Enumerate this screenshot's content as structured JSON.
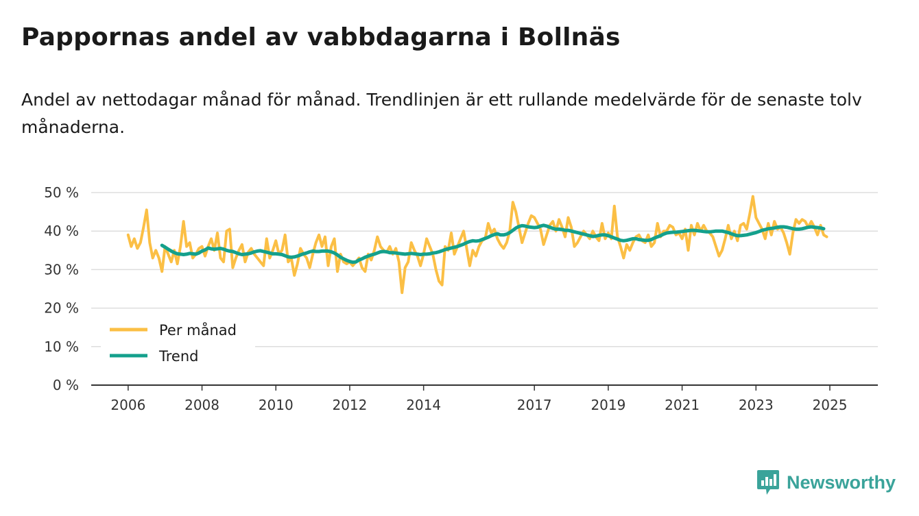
{
  "title": "Pappornas andel av vabbdagarna i Bollnäs",
  "subtitle": "Andel av nettodagar månad för månad. Trendlinjen är ett rullande medelvärde för de senaste tolv månaderna.",
  "brand": "Newsworthy",
  "colors": {
    "monthly": "#fbbf45",
    "trend": "#14a08c",
    "grid": "#dddddd",
    "axis": "#333333",
    "brand": "#3aa39a"
  },
  "chart_data": {
    "type": "line",
    "title": "Pappornas andel av vabbdagarna i Bollnäs",
    "xlabel": "",
    "ylabel": "",
    "ylim": [
      0,
      50
    ],
    "xlim": [
      2005.0,
      2026.3
    ],
    "yticks": [
      0,
      10,
      20,
      30,
      40,
      50
    ],
    "ytick_labels": [
      "0 %",
      "10 %",
      "20 %",
      "30 %",
      "40 %",
      "50 %"
    ],
    "xticks": [
      2006,
      2008,
      2010,
      2012,
      2014,
      2017,
      2019,
      2021,
      2023,
      2025
    ],
    "xtick_labels": [
      "2006",
      "2008",
      "2010",
      "2012",
      "2014",
      "2017",
      "2019",
      "2021",
      "2023",
      "2025"
    ],
    "legend_position": "bottom-left",
    "series": [
      {
        "name": "Per månad",
        "start": 2006.0,
        "step": 0.08333,
        "values": [
          39,
          36,
          38,
          35.5,
          37,
          41,
          45.5,
          37,
          33,
          35,
          33,
          29.5,
          36,
          34,
          32,
          35,
          31.5,
          36,
          42.5,
          36,
          37,
          33,
          34,
          35.5,
          36,
          33.5,
          36,
          38,
          35,
          39.5,
          33,
          32,
          40,
          40.5,
          30.5,
          33,
          35,
          36.5,
          32,
          34.5,
          35.5,
          34,
          33,
          32,
          31,
          38,
          33,
          35,
          37.5,
          34,
          35,
          39,
          32,
          33,
          28.5,
          31.5,
          35.5,
          34,
          33,
          30.5,
          34,
          37,
          39,
          36,
          38.5,
          31,
          36,
          38,
          29.5,
          34,
          32,
          31.5,
          32,
          31,
          32,
          33,
          30.5,
          29.5,
          34,
          32.5,
          35,
          38.5,
          36,
          35,
          34.5,
          36,
          34,
          35.5,
          32,
          24,
          30.5,
          32,
          37,
          35,
          33.5,
          31,
          34,
          38,
          36,
          34,
          30,
          27,
          26,
          36,
          35,
          39.5,
          34,
          36,
          38,
          40,
          35.5,
          31,
          35,
          33.5,
          36,
          37.5,
          38,
          42,
          39.5,
          40.5,
          38,
          36.5,
          35.5,
          37,
          40,
          47.5,
          45,
          41,
          37,
          39.5,
          42,
          44,
          43.5,
          42,
          40.5,
          36.5,
          39,
          41.5,
          42.5,
          40,
          43,
          41,
          38.5,
          43.5,
          41,
          36,
          37,
          38.5,
          40,
          39,
          38,
          40,
          38.5,
          37.5,
          42,
          38,
          39.5,
          38,
          46.5,
          38.5,
          36,
          33,
          36.5,
          35,
          37,
          38.5,
          39,
          37.5,
          37,
          39,
          36,
          37,
          42,
          38.5,
          40,
          40,
          41.5,
          41,
          39,
          39.5,
          38,
          40.5,
          35,
          41.5,
          39,
          42,
          40,
          41.5,
          40,
          39.5,
          38.5,
          36,
          33.5,
          35,
          38,
          41.5,
          38,
          40,
          37.5,
          41.5,
          42,
          40.5,
          44.5,
          49,
          43.5,
          42,
          40.5,
          38,
          42,
          39,
          42.5,
          40.5,
          41,
          39.5,
          37,
          34,
          39.5,
          43,
          42,
          43,
          42.5,
          41,
          42.5,
          41,
          39,
          41.5,
          39,
          38.5
        ]
      },
      {
        "name": "Trend",
        "start": 2006.9167,
        "step": 0.08333,
        "values": [
          36.3,
          35.8,
          35.3,
          34.8,
          34.4,
          34.1,
          34.0,
          33.9,
          34.0,
          34.2,
          34.1,
          34.0,
          34.3,
          34.8,
          35.1,
          35.6,
          35.4,
          35.3,
          35.4,
          35.5,
          35.3,
          35.0,
          34.8,
          34.7,
          34.4,
          34.1,
          33.9,
          34.0,
          34.1,
          34.3,
          34.6,
          34.8,
          34.9,
          34.7,
          34.5,
          34.3,
          34.1,
          34.1,
          34.0,
          33.9,
          33.6,
          33.3,
          33.2,
          33.3,
          33.5,
          33.8,
          34.1,
          34.3,
          34.6,
          34.8,
          34.7,
          34.7,
          34.8,
          34.8,
          34.8,
          34.6,
          34.3,
          33.8,
          33.2,
          32.8,
          32.4,
          32.1,
          31.9,
          32.0,
          32.5,
          32.8,
          33.2,
          33.5,
          33.8,
          34.0,
          34.3,
          34.6,
          34.7,
          34.6,
          34.4,
          34.4,
          34.3,
          34.2,
          34.1,
          34.0,
          34.1,
          34.2,
          34.1,
          34.0,
          33.9,
          34.0,
          34.0,
          34.1,
          34.3,
          34.4,
          34.6,
          34.9,
          35.2,
          35.4,
          35.6,
          35.8,
          36.0,
          36.3,
          36.6,
          37.0,
          37.3,
          37.5,
          37.4,
          37.5,
          37.8,
          38.1,
          38.4,
          38.8,
          39.1,
          39.3,
          39.0,
          39.0,
          39.2,
          39.6,
          40.2,
          40.8,
          41.2,
          41.4,
          41.3,
          41.1,
          41.0,
          40.9,
          41.0,
          41.3,
          41.5,
          41.3,
          41.0,
          40.7,
          40.5,
          40.5,
          40.4,
          40.2,
          40.2,
          40.0,
          39.8,
          39.6,
          39.4,
          39.2,
          39.0,
          38.8,
          38.6,
          38.7,
          38.9,
          39.0,
          39.0,
          38.8,
          38.5,
          38.2,
          37.9,
          37.6,
          37.5,
          37.6,
          37.8,
          38.0,
          38.0,
          37.8,
          37.7,
          37.6,
          37.6,
          37.8,
          38.2,
          38.5,
          38.8,
          39.2,
          39.5,
          39.6,
          39.7,
          39.7,
          39.8,
          39.9,
          40.0,
          40.1,
          40.2,
          40.2,
          40.1,
          40.0,
          39.9,
          39.8,
          39.8,
          39.9,
          40.0,
          40.0,
          40.0,
          39.8,
          39.6,
          39.3,
          39.0,
          38.8,
          38.8,
          38.9,
          39.0,
          39.2,
          39.4,
          39.6,
          39.9,
          40.2,
          40.4,
          40.6,
          40.7,
          40.8,
          41.0,
          41.1,
          41.1,
          41.0,
          40.8,
          40.6,
          40.5,
          40.5,
          40.6,
          40.8,
          41.0,
          41.1,
          41.0,
          40.9,
          40.8,
          40.6
        ]
      }
    ]
  }
}
